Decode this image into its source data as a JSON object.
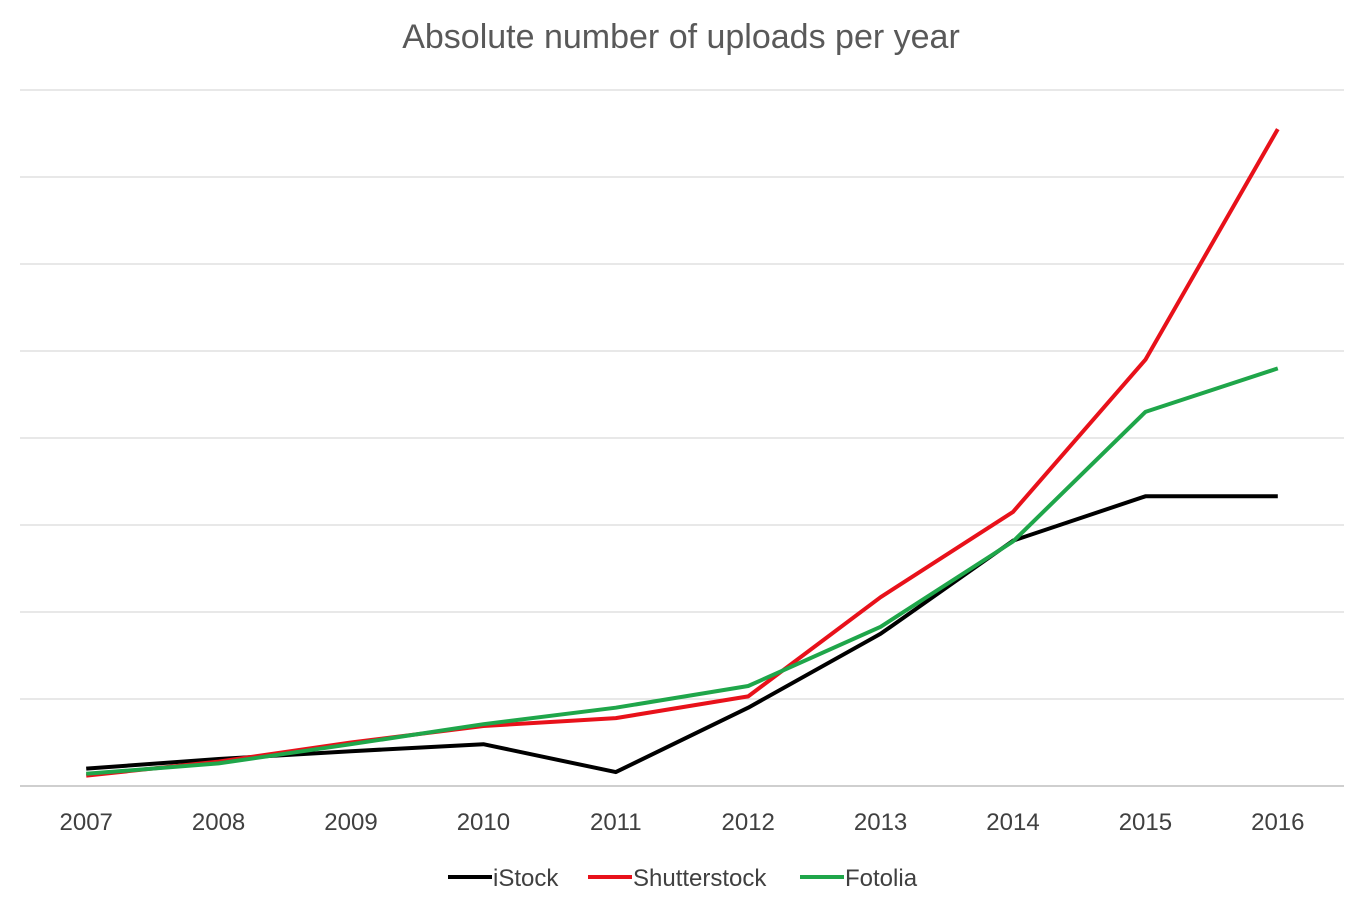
{
  "chart_data": {
    "type": "line",
    "title": "Absolute number of uploads per year",
    "xlabel": "",
    "ylabel": "",
    "x": [
      "2007",
      "2008",
      "2009",
      "2010",
      "2011",
      "2012",
      "2013",
      "2014",
      "2015",
      "2016"
    ],
    "y_axis_labels_shown": false,
    "ylim": [
      0,
      8
    ],
    "grid": "horizontal",
    "legend_position": "bottom",
    "series": [
      {
        "name": "iStock",
        "color": "#000000",
        "values": [
          0.2,
          0.31,
          0.4,
          0.48,
          0.16,
          0.9,
          1.75,
          2.82,
          3.33,
          3.33
        ]
      },
      {
        "name": "Shutterstock",
        "color": "#e8111a",
        "values": [
          0.12,
          0.28,
          0.5,
          0.69,
          0.78,
          1.03,
          2.17,
          3.15,
          4.9,
          7.55
        ]
      },
      {
        "name": "Fotolia",
        "color": "#1fa64a",
        "values": [
          0.14,
          0.26,
          0.48,
          0.71,
          0.9,
          1.15,
          1.83,
          2.81,
          4.3,
          4.8
        ]
      }
    ]
  }
}
